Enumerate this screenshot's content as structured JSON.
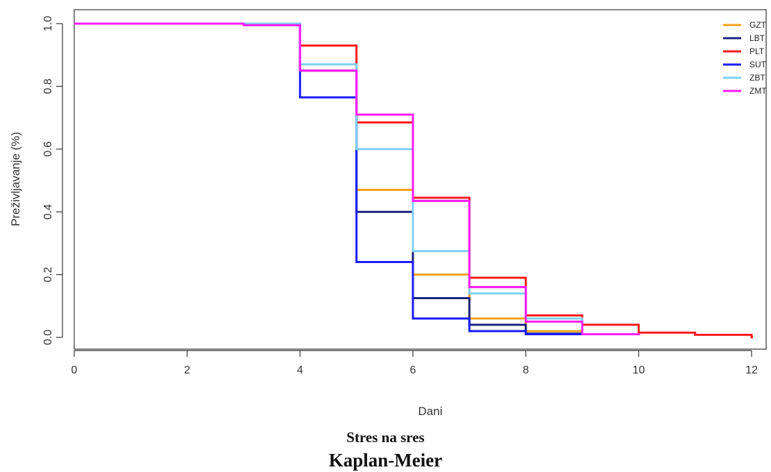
{
  "chart_data": {
    "type": "line",
    "title": "Kaplan-Meier",
    "subtitle": "Stres na sres",
    "xlabel": "Dani",
    "ylabel": "Preživljavanje (%)",
    "xlim": [
      0,
      12
    ],
    "ylim": [
      0,
      1
    ],
    "x_ticks": [
      "0",
      "2",
      "4",
      "6",
      "8",
      "10",
      "12"
    ],
    "y_ticks": [
      "0.0",
      "0.2",
      "0.4",
      "0.6",
      "0.8",
      "1.0"
    ],
    "grid": false,
    "legend_position": "top-right",
    "step": true,
    "series": [
      {
        "name": "GZT",
        "color": "#f5a11c",
        "x": [
          0,
          4,
          5,
          6,
          7,
          8,
          9
        ],
        "y": [
          1.0,
          0.85,
          0.47,
          0.2,
          0.06,
          0.02,
          0.01
        ]
      },
      {
        "name": "LBT",
        "color": "#1a237e",
        "x": [
          0,
          4,
          5,
          6,
          7,
          8,
          9
        ],
        "y": [
          1.0,
          0.85,
          0.4,
          0.125,
          0.04,
          0.012,
          0.01
        ]
      },
      {
        "name": "PLT",
        "color": "#ff1a1a",
        "x": [
          0,
          3,
          4,
          5,
          6,
          7,
          8,
          9,
          10,
          11,
          12
        ],
        "y": [
          1.0,
          1.0,
          0.93,
          0.685,
          0.445,
          0.19,
          0.07,
          0.04,
          0.015,
          0.008,
          0.0
        ]
      },
      {
        "name": "SUT",
        "color": "#1a1aff",
        "x": [
          0,
          4,
          5,
          6,
          7,
          8,
          9
        ],
        "y": [
          1.0,
          0.765,
          0.24,
          0.06,
          0.02,
          0.01,
          0.01
        ]
      },
      {
        "name": "ZBT",
        "color": "#7fd0f5",
        "x": [
          0,
          4,
          5,
          6,
          7,
          8,
          9
        ],
        "y": [
          1.0,
          0.87,
          0.6,
          0.275,
          0.14,
          0.06,
          0.01
        ]
      },
      {
        "name": "ZMT",
        "color": "#ff1aff",
        "x": [
          0,
          3,
          4,
          5,
          6,
          7,
          8,
          9,
          10
        ],
        "y": [
          1.0,
          0.995,
          0.85,
          0.71,
          0.435,
          0.16,
          0.05,
          0.01,
          0.01
        ]
      }
    ]
  }
}
